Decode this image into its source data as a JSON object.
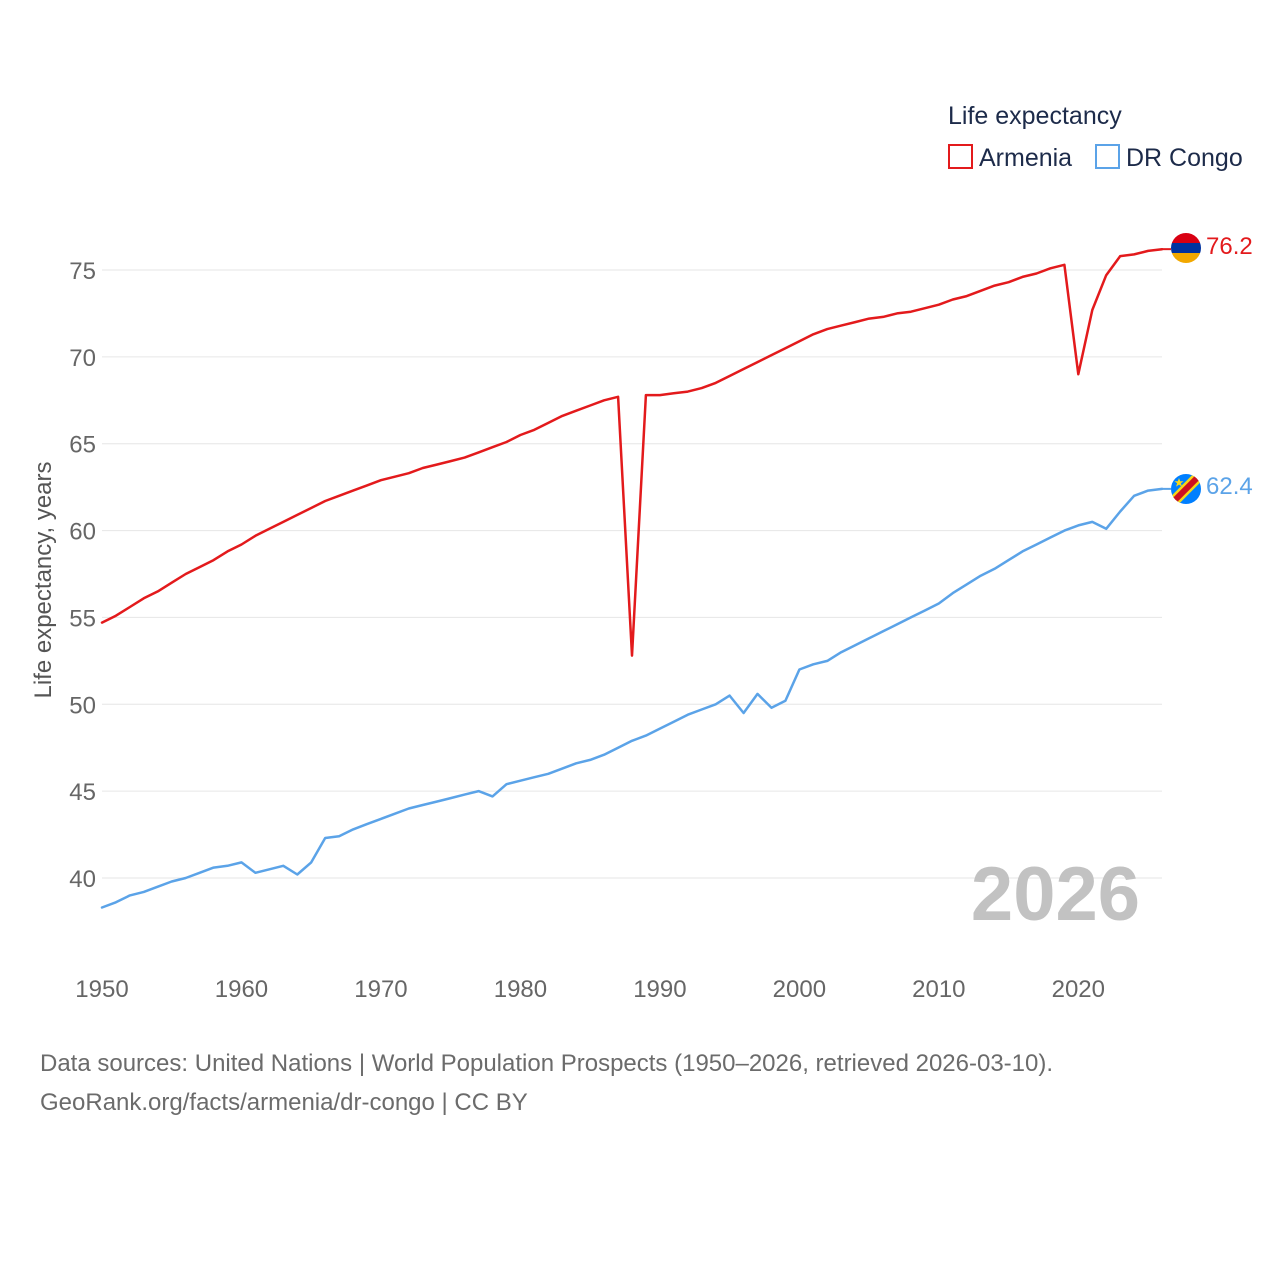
{
  "chart_data": {
    "type": "line",
    "title": "",
    "xlabel": "",
    "ylabel": "Life expectancy, years",
    "xlim": [
      1950,
      2026
    ],
    "ylim": [
      36.5,
      78
    ],
    "grid": true,
    "legend_title": "Life expectancy",
    "legend_position": "top-right",
    "year_label": "2026",
    "x_ticks": [
      1950,
      1960,
      1970,
      1980,
      1990,
      2000,
      2010,
      2020
    ],
    "y_ticks": [
      40,
      45,
      50,
      55,
      60,
      65,
      70,
      75
    ],
    "x": [
      1950,
      1951,
      1952,
      1953,
      1954,
      1955,
      1956,
      1957,
      1958,
      1959,
      1960,
      1961,
      1962,
      1963,
      1964,
      1965,
      1966,
      1967,
      1968,
      1969,
      1970,
      1971,
      1972,
      1973,
      1974,
      1975,
      1976,
      1977,
      1978,
      1979,
      1980,
      1981,
      1982,
      1983,
      1984,
      1985,
      1986,
      1987,
      1988,
      1989,
      1990,
      1991,
      1992,
      1993,
      1994,
      1995,
      1996,
      1997,
      1998,
      1999,
      2000,
      2001,
      2002,
      2003,
      2004,
      2005,
      2006,
      2007,
      2008,
      2009,
      2010,
      2011,
      2012,
      2013,
      2014,
      2015,
      2016,
      2017,
      2018,
      2019,
      2020,
      2021,
      2022,
      2023,
      2024,
      2025,
      2026
    ],
    "series": [
      {
        "name": "Armenia",
        "color": "#e31a1c",
        "end_label": "76.2",
        "flag": "armenia-flag-icon",
        "values": [
          54.7,
          55.1,
          55.6,
          56.1,
          56.5,
          57.0,
          57.5,
          57.9,
          58.3,
          58.8,
          59.2,
          59.7,
          60.1,
          60.5,
          60.9,
          61.3,
          61.7,
          62.0,
          62.3,
          62.6,
          62.9,
          63.1,
          63.3,
          63.6,
          63.8,
          64.0,
          64.2,
          64.5,
          64.8,
          65.1,
          65.5,
          65.8,
          66.2,
          66.6,
          66.9,
          67.2,
          67.5,
          67.7,
          52.8,
          67.8,
          67.8,
          67.9,
          68.0,
          68.2,
          68.5,
          68.9,
          69.3,
          69.7,
          70.1,
          70.5,
          70.9,
          71.3,
          71.6,
          71.8,
          72.0,
          72.2,
          72.3,
          72.5,
          72.6,
          72.8,
          73.0,
          73.3,
          73.5,
          73.8,
          74.1,
          74.3,
          74.6,
          74.8,
          75.1,
          75.3,
          69.0,
          72.7,
          74.7,
          75.8,
          75.9,
          76.1,
          76.2
        ]
      },
      {
        "name": "DR Congo",
        "color": "#5ba3e8",
        "end_label": "62.4",
        "flag": "dr-congo-flag-icon",
        "values": [
          38.3,
          38.6,
          39.0,
          39.2,
          39.5,
          39.8,
          40.0,
          40.3,
          40.6,
          40.7,
          40.9,
          40.3,
          40.5,
          40.7,
          40.2,
          40.9,
          42.3,
          42.4,
          42.8,
          43.1,
          43.4,
          43.7,
          44.0,
          44.2,
          44.4,
          44.6,
          44.8,
          45.0,
          44.7,
          45.4,
          45.6,
          45.8,
          46.0,
          46.3,
          46.6,
          46.8,
          47.1,
          47.5,
          47.9,
          48.2,
          48.6,
          49.0,
          49.4,
          49.7,
          50.0,
          50.5,
          49.5,
          50.6,
          49.8,
          50.2,
          52.0,
          52.3,
          52.5,
          53.0,
          53.4,
          53.8,
          54.2,
          54.6,
          55.0,
          55.4,
          55.8,
          56.4,
          56.9,
          57.4,
          57.8,
          58.3,
          58.8,
          59.2,
          59.6,
          60.0,
          60.3,
          60.5,
          60.1,
          61.1,
          62.0,
          62.3,
          62.4
        ]
      }
    ]
  },
  "footer": {
    "line1": "Data sources: United Nations | World Population Prospects (1950–2026, retrieved 2026-03-10).",
    "line2": "GeoRank.org/facts/armenia/dr-congo | CC BY"
  }
}
